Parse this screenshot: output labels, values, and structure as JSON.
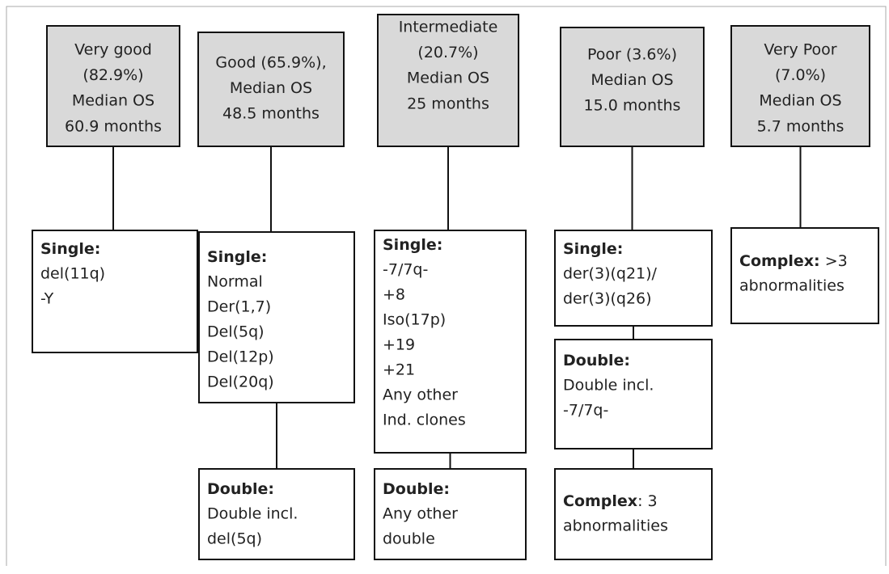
{
  "columns": [
    {
      "header": [
        "Very good",
        "(82.9%)",
        "Median OS",
        "60.9 months"
      ],
      "boxes": [
        {
          "label": "Single:",
          "lines": [
            "del(11q)",
            "-Y"
          ]
        }
      ]
    },
    {
      "header": [
        "Good (65.9%),",
        "Median OS",
        "48.5 months"
      ],
      "boxes": [
        {
          "label": "Single:",
          "lines": [
            "Normal",
            "Der(1,7)",
            "Del(5q)",
            "Del(12p)",
            "Del(20q)"
          ]
        },
        {
          "label": "Double:",
          "lines": [
            "Double incl.",
            "del(5q)"
          ]
        }
      ]
    },
    {
      "header": [
        "Intermediate",
        "(20.7%)",
        "Median OS",
        "25 months"
      ],
      "boxes": [
        {
          "label": "Single:",
          "lines": [
            "-7/7q-",
            "+8",
            "Iso(17p)",
            "+19",
            "+21",
            "Any other",
            "Ind. clones"
          ]
        },
        {
          "label": "Double:",
          "lines": [
            "Any other",
            "double"
          ]
        }
      ]
    },
    {
      "header": [
        "Poor (3.6%)",
        "Median OS",
        "15.0 months"
      ],
      "boxes": [
        {
          "label": "Single:",
          "lines": [
            "der(3)(q21)/",
            "der(3)(q26)"
          ]
        },
        {
          "label": "Double:",
          "lines": [
            "Double incl.",
            "-7/7q-"
          ]
        },
        {
          "label": "Complex",
          "inline": ": 3",
          "lines": [
            "abnormalities"
          ]
        }
      ]
    },
    {
      "header": [
        "Very Poor",
        "(7.0%)",
        "Median OS",
        "5.7 months"
      ],
      "boxes": [
        {
          "label": "Complex:",
          "inline": " >3",
          "lines": [
            "abnormalities"
          ]
        }
      ]
    }
  ]
}
